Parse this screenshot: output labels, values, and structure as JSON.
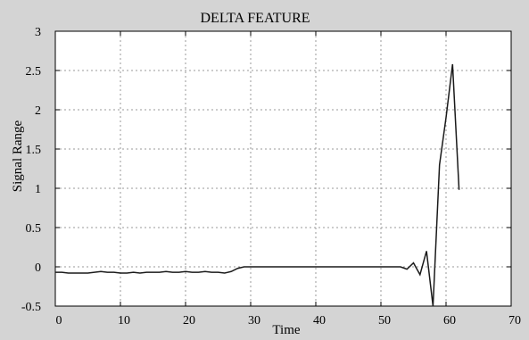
{
  "chart_data": {
    "type": "line",
    "title": "DELTA FEATURE",
    "xlabel": "Time",
    "ylabel": "Signal Range",
    "xlim": [
      0,
      70
    ],
    "ylim": [
      -0.5,
      3
    ],
    "xticks": [
      0,
      10,
      20,
      30,
      40,
      50,
      60,
      70
    ],
    "yticks": [
      -0.5,
      0,
      0.5,
      1,
      1.5,
      2,
      2.5,
      3
    ],
    "xtick_labels": [
      "0",
      "10",
      "20",
      "30",
      "40",
      "50",
      "60",
      "70"
    ],
    "ytick_labels": [
      "-0.5",
      "0",
      "0.5",
      "1",
      "1.5",
      "2",
      "2.5",
      "3"
    ],
    "grid": true,
    "legend": "none",
    "colors": {
      "line": "#1a1a1a",
      "grid": "#9a9a9a",
      "background": "#ffffff",
      "figure": "#d4d4d4"
    },
    "series": [
      {
        "x": [
          0,
          1,
          2,
          3,
          4,
          5,
          6,
          7,
          8,
          9,
          10,
          11,
          12,
          13,
          14,
          15,
          16,
          17,
          18,
          19,
          20,
          21,
          22,
          23,
          24,
          25,
          26,
          27,
          28,
          29,
          30,
          31,
          32,
          33,
          34,
          35,
          36,
          37,
          38,
          39,
          40,
          41,
          42,
          43,
          44,
          45,
          46,
          47,
          48,
          49,
          50,
          51,
          52,
          53,
          54,
          55,
          56,
          57,
          58,
          59,
          60,
          61,
          62
        ],
        "y": [
          -0.07,
          -0.07,
          -0.08,
          -0.08,
          -0.08,
          -0.08,
          -0.07,
          -0.06,
          -0.07,
          -0.07,
          -0.08,
          -0.08,
          -0.07,
          -0.08,
          -0.07,
          -0.07,
          -0.07,
          -0.06,
          -0.07,
          -0.07,
          -0.06,
          -0.07,
          -0.07,
          -0.06,
          -0.07,
          -0.07,
          -0.08,
          -0.06,
          -0.02,
          0,
          0,
          0,
          0,
          0,
          0,
          0,
          0,
          0,
          0,
          0,
          0,
          0,
          0,
          0,
          0,
          0,
          0,
          0,
          0,
          0,
          0,
          0,
          0,
          0,
          -0.03,
          0.05,
          -0.1,
          0.2,
          -0.5,
          1.3,
          1.9,
          2.58,
          0.98
        ]
      }
    ]
  }
}
